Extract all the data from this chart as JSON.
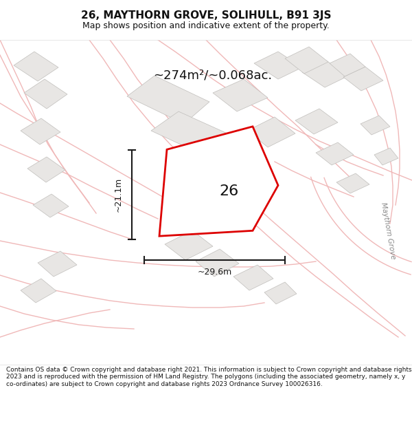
{
  "title": "26, MAYTHORN GROVE, SOLIHULL, B91 3JS",
  "subtitle": "Map shows position and indicative extent of the property.",
  "area_text": "~274m²/~0.068ac.",
  "label_26": "26",
  "dim_vertical": "~21.1m",
  "dim_horizontal": "~29.6m",
  "street_label": "Maythorn Grove",
  "footer": "Contains OS data © Crown copyright and database right 2021. This information is subject to Crown copyright and database rights 2023 and is reproduced with the permission of HM Land Registry. The polygons (including the associated geometry, namely x, y co-ordinates) are subject to Crown copyright and database rights 2023 Ordnance Survey 100026316.",
  "bg_color": "#ffffff",
  "map_bg": "#ffffff",
  "footer_bg": "#ffffff",
  "title_bg": "#ffffff",
  "pink_line_color": "#f0b8b8",
  "grey_fill_color": "#e8e6e4",
  "grey_outline_color": "#c0bebb",
  "red_poly_color": "#dd0000",
  "red_poly_fill": "#ffffff",
  "dim_color": "#1a1a1a"
}
